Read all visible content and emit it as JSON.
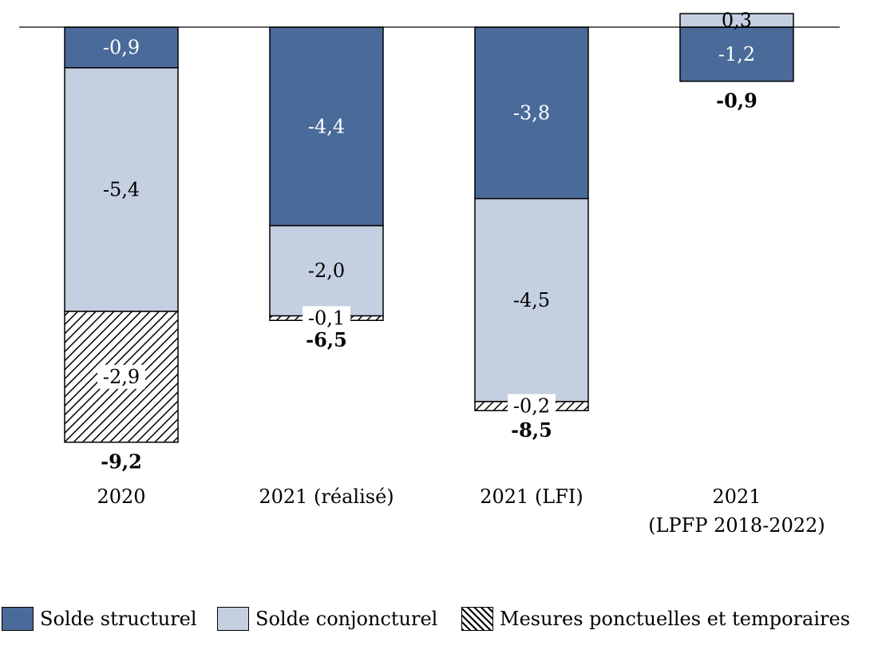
{
  "chart_data": {
    "type": "bar",
    "stacked": true,
    "categories": [
      "2020",
      "2021 (réalisé)",
      "2021 (LFI)",
      "2021\n(LPFP 2018-2022)"
    ],
    "series": [
      {
        "name": "Solde structurel",
        "values": [
          -0.9,
          -4.4,
          -3.8,
          -1.2
        ],
        "labels": [
          "-0,9",
          "-4,4",
          "-3,8",
          "-1,2"
        ],
        "color": "#4a6b9a",
        "pattern": "solid"
      },
      {
        "name": "Solde conjoncturel",
        "values": [
          -5.4,
          -2.0,
          -4.5,
          0.3
        ],
        "labels": [
          "-5,4",
          "-2,0",
          "-4,5",
          "0,3"
        ],
        "color": "#c4cfe1",
        "pattern": "solid"
      },
      {
        "name": "Mesures ponctuelles et temporaires",
        "values": [
          -2.9,
          -0.1,
          -0.2,
          null
        ],
        "labels": [
          "-2,9",
          "-0,1",
          "-0,2",
          ""
        ],
        "color": "#000000",
        "pattern": "hatch"
      }
    ],
    "totals": {
      "values": [
        -9.2,
        -6.5,
        -8.5,
        -0.9
      ],
      "labels": [
        "-9,2",
        "-6,5",
        "-8,5",
        "-0,9"
      ]
    },
    "ylim": [
      -9.5,
      0.4
    ],
    "title": "",
    "xlabel": "",
    "ylabel": "",
    "grid": false,
    "legend_position": "bottom"
  }
}
